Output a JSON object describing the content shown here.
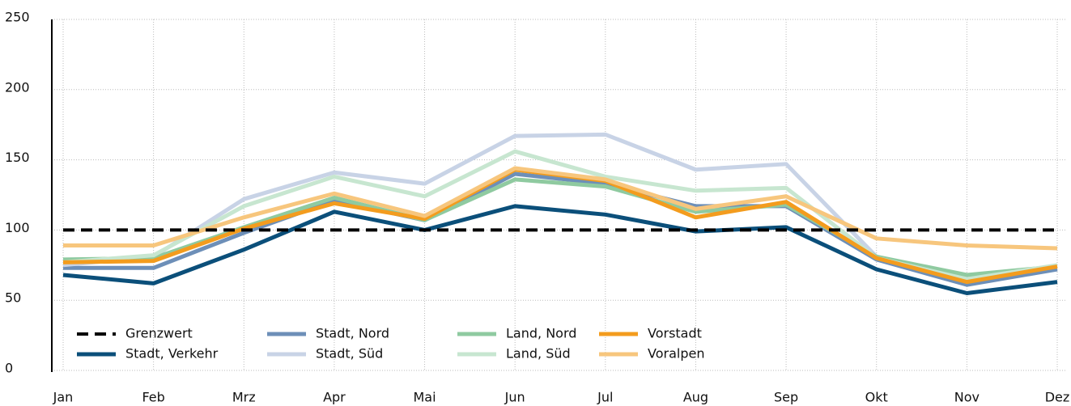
{
  "chart_data": {
    "type": "line",
    "categories": [
      "Jan",
      "Feb",
      "Mrz",
      "Apr",
      "Mai",
      "Jun",
      "Jul",
      "Aug",
      "Sep",
      "Okt",
      "Nov",
      "Dez"
    ],
    "ylim": [
      0,
      250
    ],
    "yticks": [
      0,
      50,
      100,
      150,
      200,
      250
    ],
    "grid": true,
    "series": [
      {
        "name": "Grenzwert",
        "color": "#000000",
        "dashed": true,
        "values": [
          100,
          100,
          100,
          100,
          100,
          100,
          100,
          100,
          100,
          100,
          100,
          100
        ]
      },
      {
        "name": "Stadt, Verkehr",
        "color": "#0b4f7a",
        "values": [
          68,
          62,
          86,
          113,
          100,
          117,
          111,
          99,
          102,
          72,
          55,
          63
        ]
      },
      {
        "name": "Stadt, Nord",
        "color": "#6d8fb8",
        "values": [
          73,
          73,
          98,
          121,
          107,
          140,
          133,
          117,
          117,
          79,
          61,
          72
        ]
      },
      {
        "name": "Stadt, Süd",
        "color": "#c8d3e6",
        "values": [
          75,
          81,
          122,
          141,
          133,
          167,
          168,
          143,
          147,
          81,
          65,
          74
        ]
      },
      {
        "name": "Land, Nord",
        "color": "#8fcaa0",
        "values": [
          79,
          80,
          102,
          123,
          107,
          136,
          131,
          113,
          118,
          81,
          68,
          74
        ]
      },
      {
        "name": "Land, Süd",
        "color": "#c7e6d0",
        "values": [
          77,
          82,
          117,
          138,
          124,
          156,
          138,
          128,
          130,
          80,
          65,
          75
        ]
      },
      {
        "name": "Vorstadt",
        "color": "#f39c1e",
        "values": [
          77,
          78,
          101,
          119,
          108,
          143,
          135,
          109,
          120,
          80,
          63,
          74
        ]
      },
      {
        "name": "Voralpen",
        "color": "#f7c67d",
        "values": [
          89,
          89,
          109,
          126,
          110,
          144,
          136,
          115,
          124,
          94,
          89,
          87
        ]
      }
    ]
  }
}
